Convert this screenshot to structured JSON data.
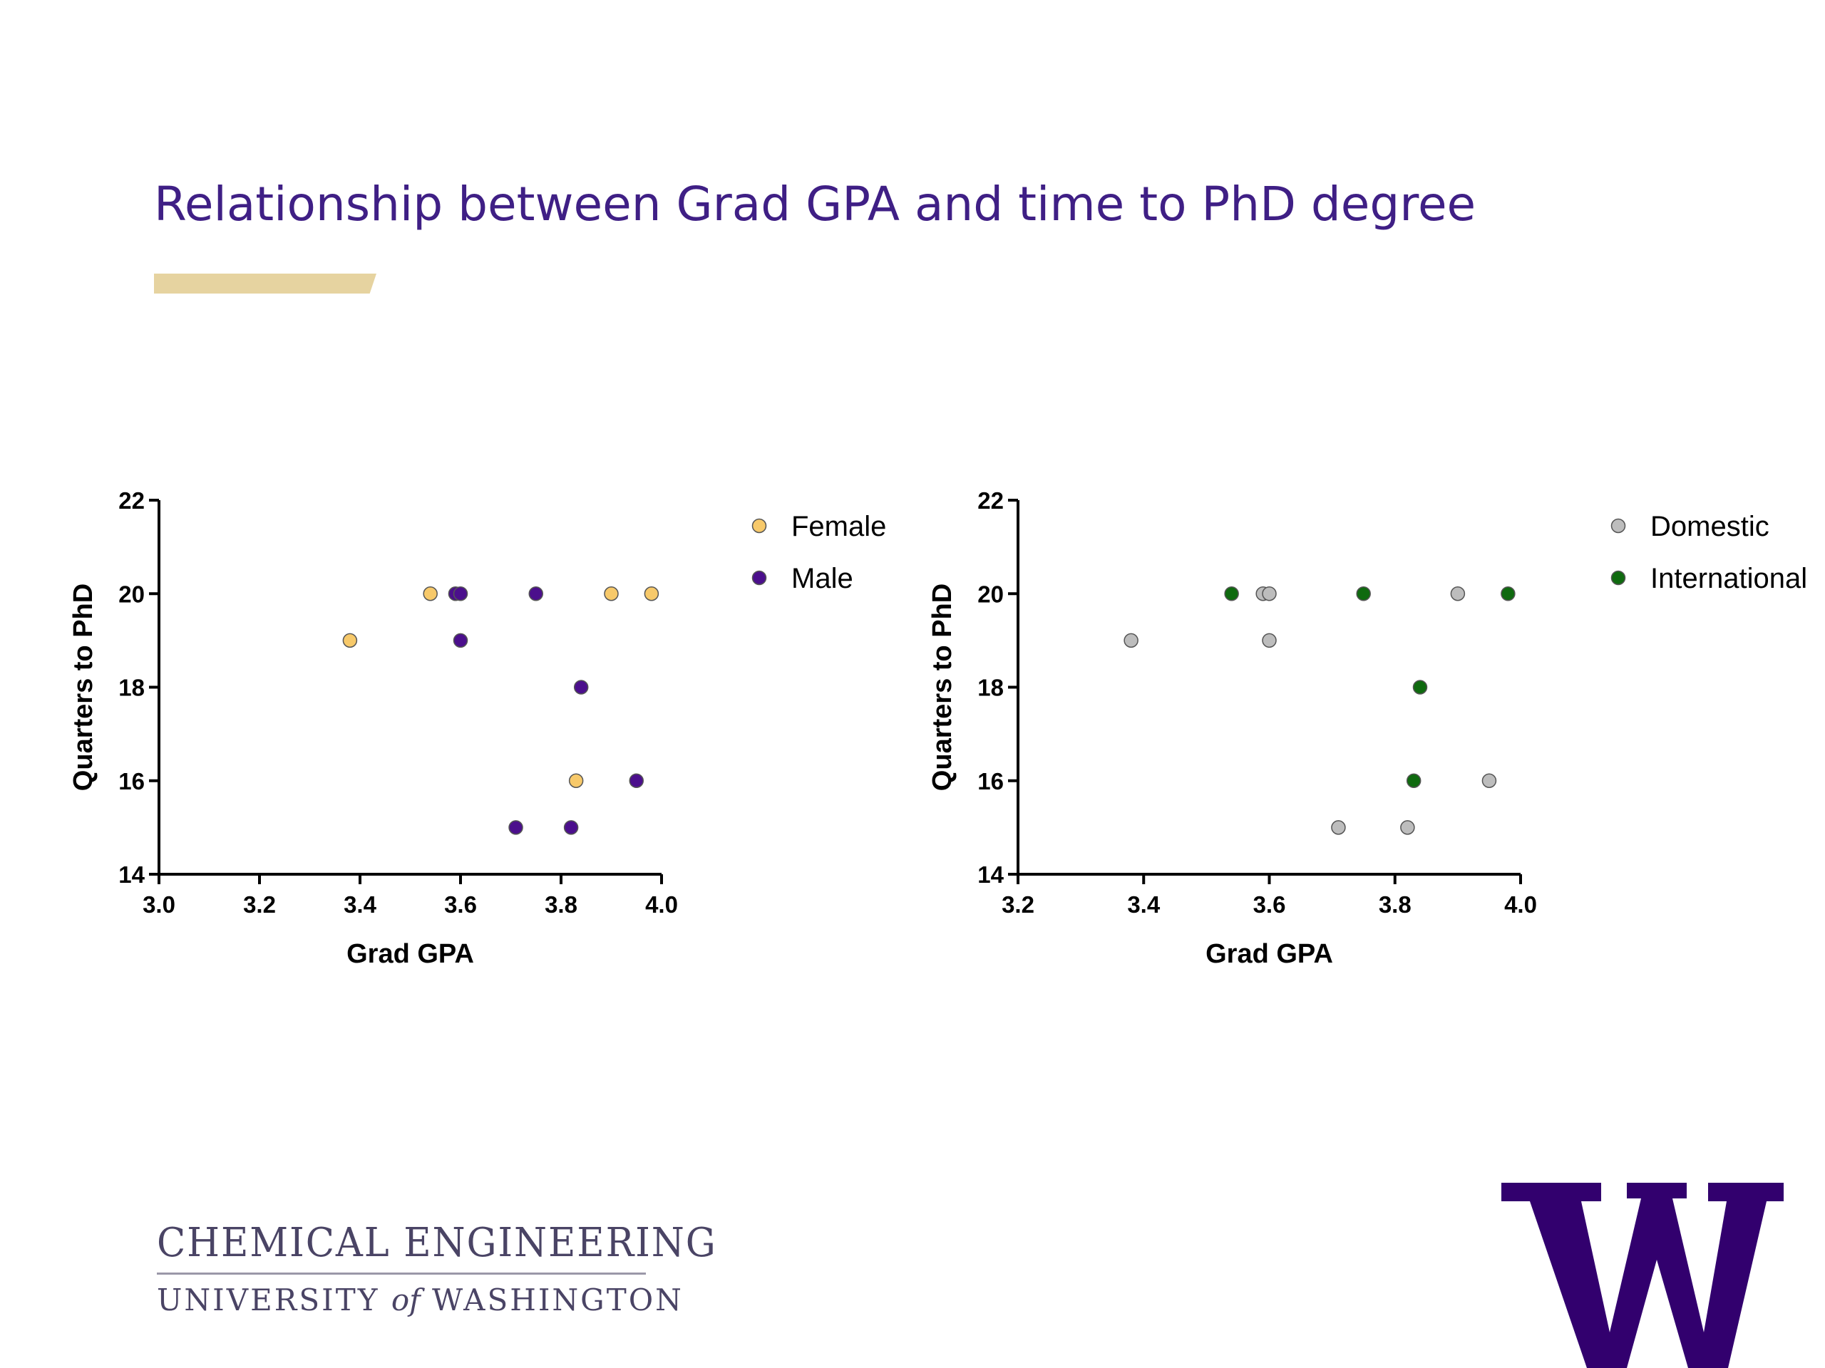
{
  "slide": {
    "title": "Relationship between Grad GPA and time to PhD degree"
  },
  "footer": {
    "dept": "CHEMICAL ENGINEERING",
    "univ_pre": "UNIVERSITY",
    "univ_of": "of",
    "univ_post": "WASHINGTON",
    "logo_letter": "W"
  },
  "colors": {
    "title": "#3f1f85",
    "gold_accent": "#e6d3a0",
    "female": "#f7c96a",
    "male": "#4b0f8c",
    "domestic": "#bdbdbd",
    "international": "#0f6a0f",
    "uw_purple": "#32006e"
  },
  "chart_data": [
    {
      "type": "scatter",
      "xlabel": "Grad GPA",
      "ylabel": "Quarters to PhD",
      "xlim": [
        3.0,
        4.0
      ],
      "ylim": [
        14,
        22
      ],
      "xticks": [
        "3.0",
        "3.2",
        "3.4",
        "3.6",
        "3.8",
        "4.0"
      ],
      "yticks": [
        "14",
        "16",
        "18",
        "20",
        "22"
      ],
      "legend_position": "top-right",
      "series": [
        {
          "name": "Female",
          "color": "#f7c96a",
          "points": [
            [
              3.54,
              20
            ],
            [
              3.9,
              20
            ],
            [
              3.98,
              20
            ],
            [
              3.38,
              19
            ],
            [
              3.83,
              16
            ]
          ]
        },
        {
          "name": "Male",
          "color": "#4b0f8c",
          "points": [
            [
              3.59,
              20
            ],
            [
              3.6,
              20
            ],
            [
              3.75,
              20
            ],
            [
              3.6,
              19
            ],
            [
              3.84,
              18
            ],
            [
              3.95,
              16
            ],
            [
              3.71,
              15
            ],
            [
              3.82,
              15
            ]
          ]
        }
      ]
    },
    {
      "type": "scatter",
      "xlabel": "Grad GPA",
      "ylabel": "Quarters to PhD",
      "xlim": [
        3.2,
        4.0
      ],
      "ylim": [
        14,
        22
      ],
      "xticks": [
        "3.2",
        "3.4",
        "3.6",
        "3.8",
        "4.0"
      ],
      "yticks": [
        "14",
        "16",
        "18",
        "20",
        "22"
      ],
      "legend_position": "top-right",
      "series": [
        {
          "name": "Domestic",
          "color": "#bdbdbd",
          "points": [
            [
              3.59,
              20
            ],
            [
              3.6,
              20
            ],
            [
              3.9,
              20
            ],
            [
              3.38,
              19
            ],
            [
              3.6,
              19
            ],
            [
              3.95,
              16
            ],
            [
              3.71,
              15
            ],
            [
              3.82,
              15
            ]
          ]
        },
        {
          "name": "International",
          "color": "#0f6a0f",
          "points": [
            [
              3.54,
              20
            ],
            [
              3.75,
              20
            ],
            [
              3.98,
              20
            ],
            [
              3.84,
              18
            ],
            [
              3.83,
              16
            ]
          ]
        }
      ]
    }
  ]
}
